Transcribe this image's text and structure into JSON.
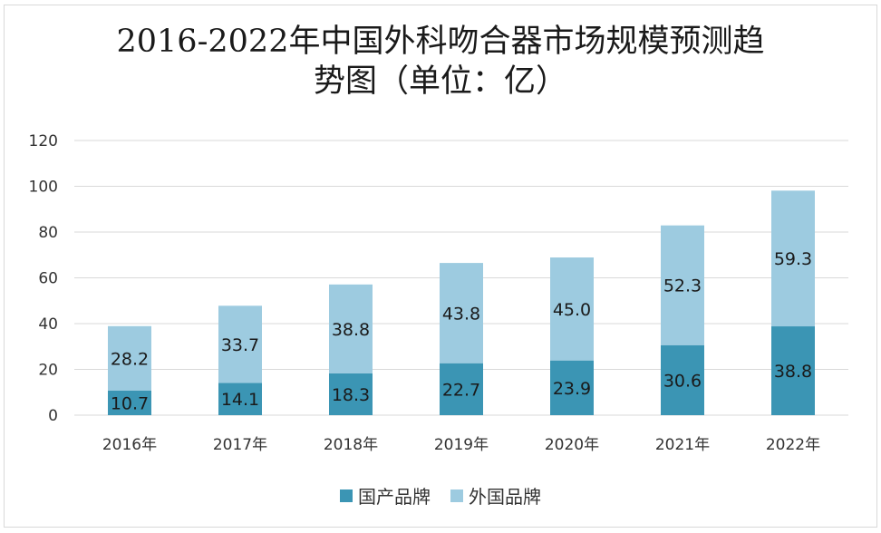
{
  "chart_data": {
    "type": "bar",
    "stacked": true,
    "title_lines": [
      "2016-2022年中国外科吻合器市场规模预测趋",
      "势图（单位：亿）"
    ],
    "categories": [
      "2016年",
      "2017年",
      "2018年",
      "2019年",
      "2020年",
      "2021年",
      "2022年"
    ],
    "series": [
      {
        "name": "国产品牌",
        "color": "#3b95b4",
        "values": [
          10.7,
          14.1,
          18.3,
          22.7,
          23.9,
          30.6,
          38.8
        ],
        "labels": [
          "10.7",
          "14.1",
          "18.3",
          "22.7",
          "23.9",
          "30.6",
          "38.8"
        ]
      },
      {
        "name": "外国品牌",
        "color": "#9dcbe0",
        "values": [
          28.2,
          33.7,
          38.8,
          43.8,
          45.0,
          52.3,
          59.3
        ],
        "labels": [
          "28.2",
          "33.7",
          "38.8",
          "43.8",
          "45.0",
          "52.3",
          "59.3"
        ]
      }
    ],
    "ylim": [
      0,
      120
    ],
    "yticks": [
      "0",
      "20",
      "40",
      "60",
      "80",
      "100",
      "120"
    ],
    "grid": true,
    "legend_position": "bottom"
  }
}
